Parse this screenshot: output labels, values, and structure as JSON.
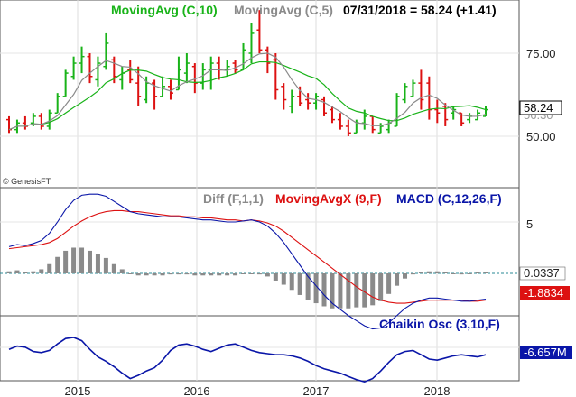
{
  "colors": {
    "green": "#19b319",
    "gray": "#8a8a8a",
    "red": "#dd1111",
    "blue": "#0a16a8",
    "dark": "#444444",
    "teal": "#2a8a96",
    "valbox_red": "#dd1111",
    "valbox_blue": "#0a16a8"
  },
  "branding": {
    "watermark": "© GenesisFT"
  },
  "chart_data": [
    {
      "panel": "price",
      "type": "line",
      "legend": [
        {
          "text": "MovingAvg (C,10)",
          "color": "#19b319"
        },
        {
          "text": "MovingAvg (C,5)",
          "color": "#8a8a8a"
        },
        {
          "text": "07/31/2018 = 58.24 (+1.41)",
          "color": "#000000"
        }
      ],
      "y_ticks": [
        "75.00",
        "50.00"
      ],
      "last_value_label": "58.24",
      "hidden_value_label": "56.30",
      "x_ticks": [
        "2015",
        "2016",
        "2017",
        "2018"
      ],
      "grid": true,
      "bars": [
        {
          "h": 56,
          "l": 51,
          "o": 55,
          "c": 52,
          "up": false
        },
        {
          "h": 55,
          "l": 51,
          "o": 52,
          "c": 54,
          "up": true
        },
        {
          "h": 56,
          "l": 52,
          "o": 54,
          "c": 53,
          "up": false
        },
        {
          "h": 57,
          "l": 53,
          "o": 54,
          "c": 56,
          "up": true
        },
        {
          "h": 57,
          "l": 52,
          "o": 56,
          "c": 53,
          "up": false
        },
        {
          "h": 58,
          "l": 52,
          "o": 53,
          "c": 57,
          "up": true
        },
        {
          "h": 63,
          "l": 57,
          "o": 57,
          "c": 62,
          "up": true
        },
        {
          "h": 70,
          "l": 62,
          "o": 62,
          "c": 69,
          "up": true
        },
        {
          "h": 74,
          "l": 67,
          "o": 68,
          "c": 72,
          "up": true
        },
        {
          "h": 77,
          "l": 69,
          "o": 72,
          "c": 74,
          "up": true
        },
        {
          "h": 75,
          "l": 66,
          "o": 74,
          "c": 68,
          "up": false
        },
        {
          "h": 74,
          "l": 65,
          "o": 67,
          "c": 72,
          "up": true
        },
        {
          "h": 81,
          "l": 70,
          "o": 71,
          "c": 78,
          "up": true
        },
        {
          "h": 74,
          "l": 66,
          "o": 73,
          "c": 68,
          "up": false
        },
        {
          "h": 71,
          "l": 64,
          "o": 67,
          "c": 69,
          "up": true
        },
        {
          "h": 73,
          "l": 66,
          "o": 70,
          "c": 67,
          "up": false
        },
        {
          "h": 71,
          "l": 59,
          "o": 66,
          "c": 62,
          "up": false
        },
        {
          "h": 68,
          "l": 60,
          "o": 61,
          "c": 66,
          "up": true
        },
        {
          "h": 67,
          "l": 58,
          "o": 66,
          "c": 62,
          "up": false
        },
        {
          "h": 68,
          "l": 62,
          "o": 62,
          "c": 65,
          "up": true
        },
        {
          "h": 67,
          "l": 61,
          "o": 65,
          "c": 63,
          "up": false
        },
        {
          "h": 74,
          "l": 64,
          "o": 64,
          "c": 70,
          "up": true
        },
        {
          "h": 75,
          "l": 66,
          "o": 69,
          "c": 72,
          "up": true
        },
        {
          "h": 72,
          "l": 63,
          "o": 71,
          "c": 66,
          "up": false
        },
        {
          "h": 72,
          "l": 64,
          "o": 66,
          "c": 70,
          "up": true
        },
        {
          "h": 74,
          "l": 64,
          "o": 70,
          "c": 72,
          "up": true
        },
        {
          "h": 74,
          "l": 67,
          "o": 72,
          "c": 70,
          "up": false
        },
        {
          "h": 73,
          "l": 68,
          "o": 70,
          "c": 71,
          "up": true
        },
        {
          "h": 73,
          "l": 69,
          "o": 72,
          "c": 70,
          "up": false
        },
        {
          "h": 78,
          "l": 70,
          "o": 70,
          "c": 76,
          "up": true
        },
        {
          "h": 84,
          "l": 72,
          "o": 75,
          "c": 81,
          "up": true
        },
        {
          "h": 88,
          "l": 75,
          "o": 82,
          "c": 76,
          "up": false
        },
        {
          "h": 77,
          "l": 69,
          "o": 76,
          "c": 72,
          "up": false
        },
        {
          "h": 75,
          "l": 61,
          "o": 73,
          "c": 64,
          "up": false
        },
        {
          "h": 66,
          "l": 58,
          "o": 65,
          "c": 61,
          "up": false
        },
        {
          "h": 64,
          "l": 57,
          "o": 59,
          "c": 62,
          "up": true
        },
        {
          "h": 65,
          "l": 59,
          "o": 62,
          "c": 60,
          "up": false
        },
        {
          "h": 63,
          "l": 58,
          "o": 61,
          "c": 60,
          "up": false
        },
        {
          "h": 63,
          "l": 58,
          "o": 60,
          "c": 62,
          "up": true
        },
        {
          "h": 62,
          "l": 56,
          "o": 61,
          "c": 57,
          "up": false
        },
        {
          "h": 59,
          "l": 54,
          "o": 58,
          "c": 55,
          "up": false
        },
        {
          "h": 57,
          "l": 52,
          "o": 55,
          "c": 53,
          "up": false
        },
        {
          "h": 55,
          "l": 50,
          "o": 53,
          "c": 51,
          "up": false
        },
        {
          "h": 55,
          "l": 51,
          "o": 51,
          "c": 54,
          "up": true
        },
        {
          "h": 58,
          "l": 52,
          "o": 54,
          "c": 56,
          "up": true
        },
        {
          "h": 56,
          "l": 51,
          "o": 56,
          "c": 52,
          "up": false
        },
        {
          "h": 54,
          "l": 51,
          "o": 51,
          "c": 53,
          "up": true
        },
        {
          "h": 55,
          "l": 51,
          "o": 52,
          "c": 54,
          "up": true
        },
        {
          "h": 63,
          "l": 53,
          "o": 53,
          "c": 62,
          "up": true
        },
        {
          "h": 66,
          "l": 60,
          "o": 61,
          "c": 65,
          "up": true
        },
        {
          "h": 67,
          "l": 62,
          "o": 62,
          "c": 66,
          "up": true
        },
        {
          "h": 70,
          "l": 58,
          "o": 66,
          "c": 61,
          "up": false
        },
        {
          "h": 68,
          "l": 55,
          "o": 66,
          "c": 58,
          "up": false
        },
        {
          "h": 61,
          "l": 54,
          "o": 58,
          "c": 57,
          "up": false
        },
        {
          "h": 60,
          "l": 53,
          "o": 59,
          "c": 55,
          "up": false
        },
        {
          "h": 59,
          "l": 55,
          "o": 57,
          "c": 58,
          "up": true
        },
        {
          "h": 57,
          "l": 53,
          "o": 57,
          "c": 54,
          "up": false
        },
        {
          "h": 57,
          "l": 54,
          "o": 55,
          "c": 56,
          "up": true
        },
        {
          "h": 58,
          "l": 55,
          "o": 55,
          "c": 57,
          "up": true
        },
        {
          "h": 59,
          "l": 56,
          "o": 56,
          "c": 58,
          "up": true
        }
      ]
    },
    {
      "panel": "macd",
      "type": "line",
      "legend": [
        {
          "text": "Diff (F,1,1)",
          "color": "#8a8a8a"
        },
        {
          "text": "MovingAvgX (9,F)",
          "color": "#dd1111"
        },
        {
          "text": "MACD (C,12,26,F)",
          "color": "#0a16a8"
        }
      ],
      "y_ticks": [
        "5"
      ],
      "zero_value_label": "0.0337",
      "signal_value_label": "-1.8834",
      "x_ticks": [
        "2015",
        "2016",
        "2017",
        "2018"
      ],
      "grid": true,
      "macd": [
        2.6,
        2.8,
        2.7,
        2.9,
        3.2,
        3.9,
        5.0,
        6.2,
        7.1,
        7.6,
        7.7,
        7.7,
        7.5,
        7.0,
        6.5,
        6.0,
        5.8,
        5.7,
        5.6,
        5.5,
        5.5,
        5.5,
        5.4,
        5.3,
        5.2,
        5.2,
        5.1,
        5.0,
        5.0,
        5.1,
        5.2,
        5.0,
        4.6,
        3.9,
        3.0,
        1.9,
        0.8,
        -0.3,
        -1.2,
        -2.1,
        -2.9,
        -3.5,
        -4.1,
        -4.6,
        -5.1,
        -5.4,
        -5.3,
        -4.8,
        -4.1,
        -3.4,
        -2.9,
        -2.6,
        -2.4,
        -2.4,
        -2.5,
        -2.6,
        -2.7,
        -2.7,
        -2.6,
        -2.5
      ],
      "signal": [
        2.4,
        2.5,
        2.6,
        2.7,
        2.8,
        3.0,
        3.4,
        4.0,
        4.6,
        5.1,
        5.5,
        5.8,
        6.0,
        6.1,
        6.1,
        6.0,
        6.0,
        5.9,
        5.8,
        5.7,
        5.6,
        5.6,
        5.5,
        5.5,
        5.4,
        5.4,
        5.3,
        5.2,
        5.2,
        5.1,
        5.2,
        5.1,
        4.9,
        4.6,
        4.1,
        3.5,
        2.9,
        2.3,
        1.7,
        1.1,
        0.5,
        -0.1,
        -0.7,
        -1.3,
        -1.8,
        -2.3,
        -2.6,
        -2.8,
        -2.9,
        -2.9,
        -2.8,
        -2.7,
        -2.6,
        -2.6,
        -2.6,
        -2.6,
        -2.6,
        -2.7,
        -2.7,
        -2.6
      ],
      "diff": [
        0.2,
        0.3,
        0.1,
        0.2,
        0.4,
        0.9,
        1.6,
        2.2,
        2.5,
        2.5,
        2.2,
        1.9,
        1.5,
        0.9,
        0.4,
        0.0,
        -0.2,
        -0.2,
        -0.2,
        -0.2,
        -0.1,
        -0.1,
        -0.1,
        -0.2,
        -0.2,
        -0.2,
        -0.2,
        -0.2,
        -0.2,
        0.0,
        0.0,
        -0.1,
        -0.3,
        -0.7,
        -1.1,
        -1.6,
        -2.1,
        -2.6,
        -2.9,
        -3.2,
        -3.4,
        -3.4,
        -3.4,
        -3.3,
        -3.3,
        -3.1,
        -2.7,
        -2.0,
        -1.2,
        -0.5,
        -0.1,
        0.1,
        0.2,
        0.2,
        0.1,
        0.0,
        -0.1,
        0.0,
        0.1,
        0.1
      ]
    },
    {
      "panel": "chaikin",
      "type": "line",
      "legend": [
        {
          "text": "Chaikin Osc (3,10,F)",
          "color": "#0a16a8"
        }
      ],
      "last_value_label": "-6.657M",
      "x_ticks": [
        "2015",
        "2016",
        "2017",
        "2018"
      ],
      "grid": true,
      "values": [
        0.4,
        0.7,
        0.6,
        0.2,
        0.1,
        0.3,
        0.9,
        1.4,
        1.5,
        1.2,
        0.4,
        -0.3,
        -0.7,
        -1.2,
        -1.8,
        -2.3,
        -2.0,
        -1.6,
        -1.3,
        -0.6,
        0.3,
        0.8,
        0.9,
        0.7,
        0.4,
        0.2,
        0.5,
        0.8,
        0.9,
        0.6,
        0.3,
        0.1,
        0.0,
        -0.1,
        -0.1,
        -0.2,
        -0.4,
        -0.7,
        -1.1,
        -1.4,
        -1.6,
        -1.8,
        -2.1,
        -2.4,
        -2.6,
        -2.3,
        -1.6,
        -0.8,
        -0.1,
        0.2,
        0.3,
        -0.1,
        -0.5,
        -0.6,
        -0.4,
        -0.2,
        -0.1,
        -0.2,
        -0.3,
        -0.1
      ]
    }
  ]
}
